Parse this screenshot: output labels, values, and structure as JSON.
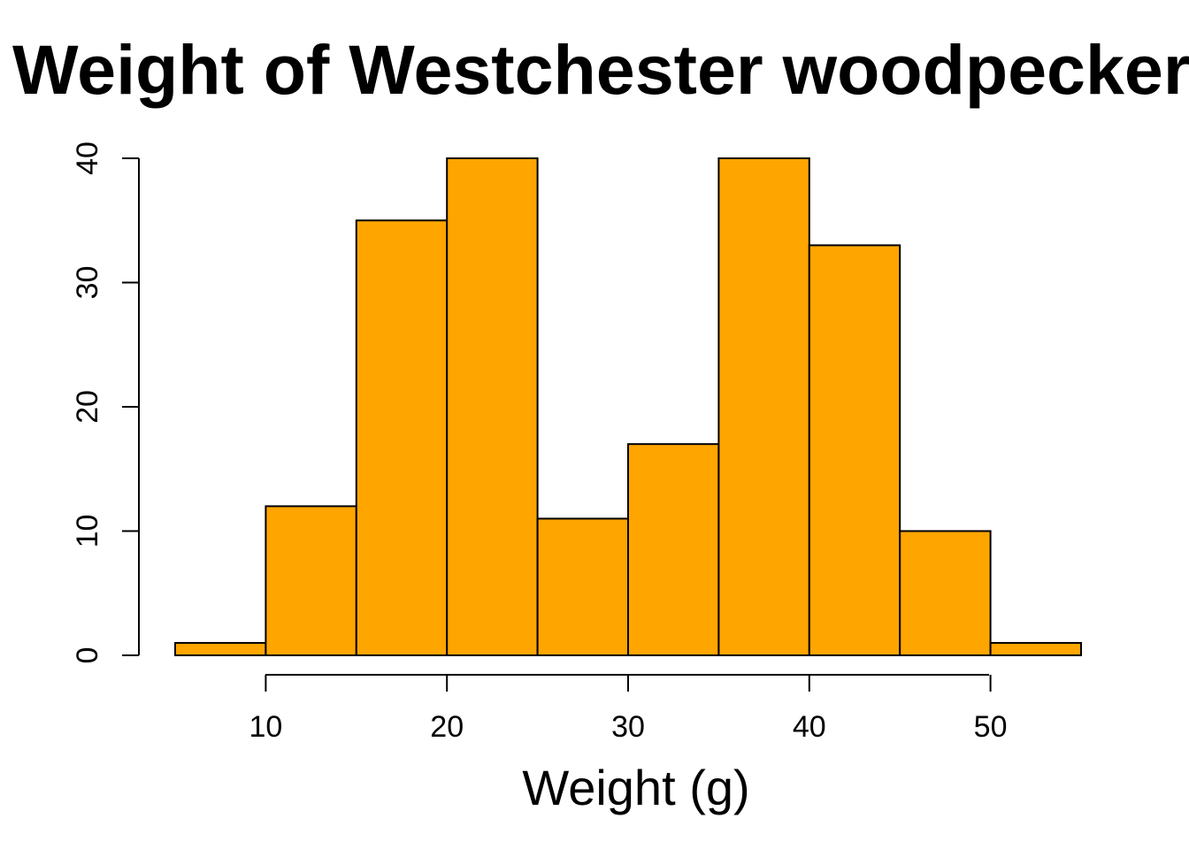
{
  "chart_data": {
    "type": "bar",
    "title": "Weight of Westchester woodpeckers",
    "xlabel": "Weight (g)",
    "ylabel": "",
    "bin_edges": [
      5,
      10,
      15,
      20,
      25,
      30,
      35,
      40,
      45,
      50,
      55
    ],
    "values": [
      1,
      12,
      35,
      40,
      11,
      17,
      40,
      33,
      10,
      1
    ],
    "xlim": [
      5,
      55
    ],
    "ylim": [
      0,
      40
    ],
    "x_ticks": [
      10,
      20,
      30,
      40,
      50
    ],
    "y_ticks": [
      0,
      10,
      20,
      30,
      40
    ],
    "bar_color": "#FFA500",
    "grid": false
  }
}
